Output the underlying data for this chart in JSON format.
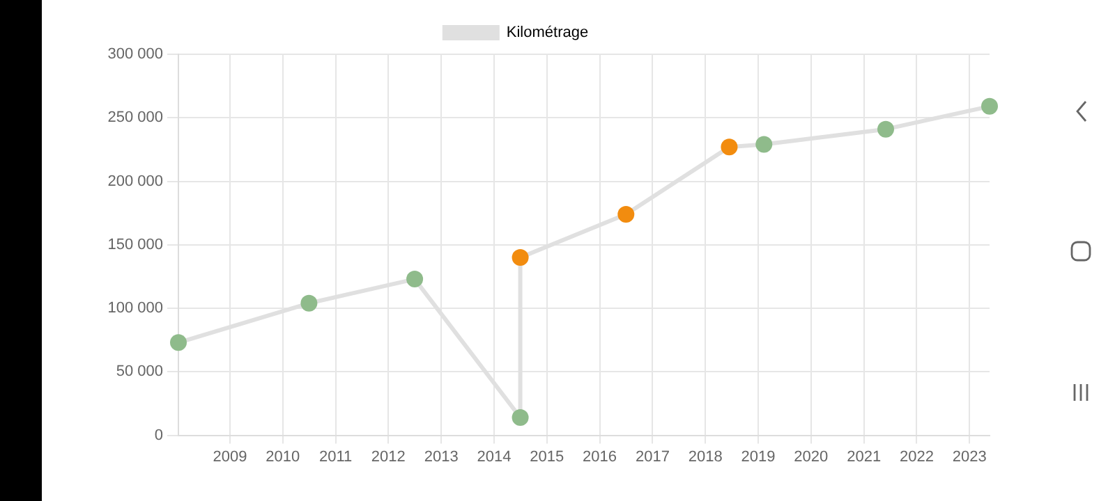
{
  "chart_data": {
    "type": "line",
    "x": [
      "2008-01-10",
      "2010-07",
      "2012-07",
      "2014-07",
      "2014-07",
      "2016-07",
      "2018-06-15",
      "2019-02-10",
      "2021-06",
      "2023-05-20"
    ],
    "series": [
      {
        "name": "Kilométrage",
        "color": "#e0e0e0",
        "colors": [
          "#8fbb8b",
          "#8fbb8b",
          "#8fbb8b",
          "#8fbb8b",
          "#f28c0f",
          "#f28c0f",
          "#f28c0f",
          "#8fbb8b",
          "#8fbb8b",
          "#8fbb8b"
        ],
        "values": [
          73000,
          104000,
          123000,
          14000,
          140000,
          174000,
          227000,
          229000,
          241000,
          259000
        ]
      }
    ],
    "xlim": [
      "2008-01-10",
      "2023-05-20"
    ],
    "xticks": [
      "2009",
      "2010",
      "2011",
      "2012",
      "2013",
      "2014",
      "2015",
      "2016",
      "2017",
      "2018",
      "2019",
      "2020",
      "2021",
      "2022",
      "2023"
    ],
    "ylim": [
      0,
      300000
    ],
    "yticks": [
      0,
      {
        "value": 50000,
        "label": "50 000"
      },
      {
        "value": 100000,
        "label": "100 000"
      },
      {
        "value": 150000,
        "label": "150 000"
      },
      {
        "value": 200000,
        "label": "200 000"
      },
      {
        "value": 250000,
        "label": "250 000"
      },
      {
        "value": 300000,
        "label": "300 000"
      }
    ],
    "grid": true,
    "legend": "top",
    "marker": "circle",
    "line_style": "solid"
  }
}
